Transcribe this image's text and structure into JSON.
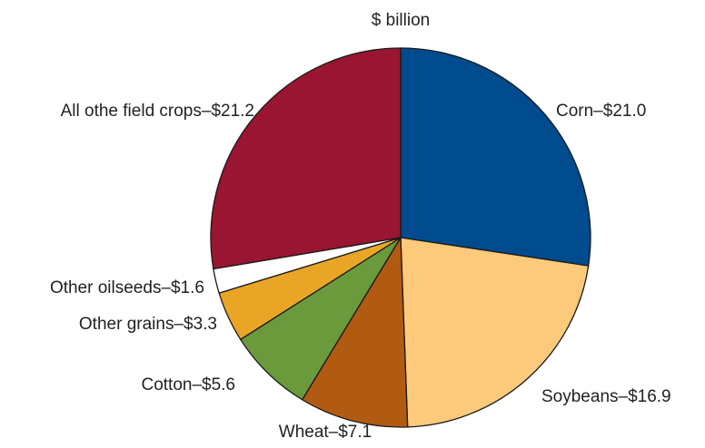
{
  "chart_data": {
    "type": "pie",
    "title": "$ billion",
    "slices": [
      {
        "label": "Corn–$21.0",
        "category": "Corn",
        "value": 21.0,
        "color": "#004b8d"
      },
      {
        "label": "Soybeans–$16.9",
        "category": "Soybeans",
        "value": 16.9,
        "color": "#fdc97b"
      },
      {
        "label": "Wheat–$7.1",
        "category": "Wheat",
        "value": 7.1,
        "color": "#b15b12"
      },
      {
        "label": "Cotton–$5.6",
        "category": "Cotton",
        "value": 5.6,
        "color": "#6a9a3c"
      },
      {
        "label": "Other grains–$3.3",
        "category": "Other grains",
        "value": 3.3,
        "color": "#e9a626"
      },
      {
        "label": "Other oilseeds–$1.6",
        "category": "Other oilseeds",
        "value": 1.6,
        "color": "#ffffff"
      },
      {
        "label": "All othe field crops–$21.2",
        "category": "All othe field crops",
        "value": 21.2,
        "color": "#9a1531"
      }
    ]
  }
}
